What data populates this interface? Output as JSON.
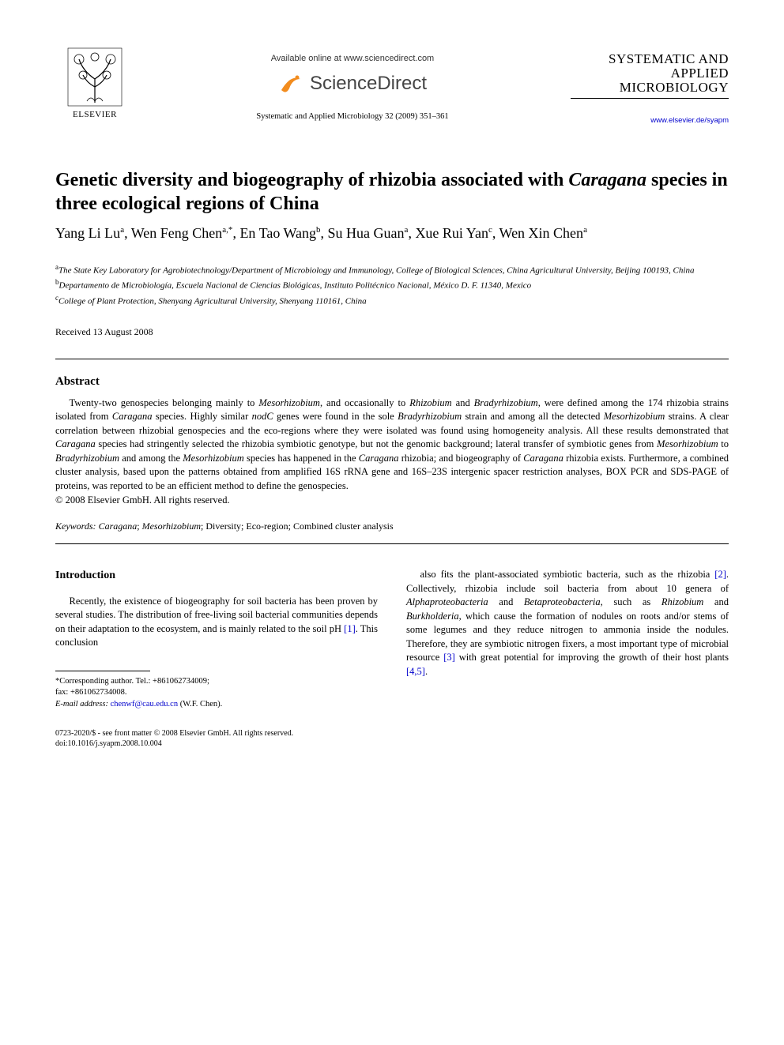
{
  "header": {
    "available_online": "Available online at www.sciencedirect.com",
    "sciencedirect": "ScienceDirect",
    "citation": "Systematic and Applied Microbiology 32 (2009) 351–361",
    "publisher": "ELSEVIER",
    "journal_name_line1": "SYSTEMATIC AND",
    "journal_name_line2": "APPLIED MICROBIOLOGY",
    "journal_url": "www.elsevier.de/syapm"
  },
  "title": {
    "html": "Genetic diversity and biogeography of rhizobia associated with <em>Caragana</em> species in three ecological regions of China"
  },
  "authors": {
    "html": "Yang Li Lu<sup>a</sup>, Wen Feng Chen<sup>a,*</sup>, En Tao Wang<sup>b</sup>, Su Hua Guan<sup>a</sup>, Xue Rui Yan<sup>c</sup>, Wen Xin Chen<sup>a</sup>"
  },
  "affiliations": [
    {
      "sup": "a",
      "text": "The State Key Laboratory for Agrobiotechnology/Department of Microbiology and Immunology, College of Biological Sciences, China Agricultural University, Beijing 100193, China"
    },
    {
      "sup": "b",
      "text": "Departamento de Microbiología, Escuela Nacional de Ciencias Biológicas, Instituto Politécnico Nacional, México D. F. 11340, Mexico"
    },
    {
      "sup": "c",
      "text": "College of Plant Protection, Shenyang Agricultural University, Shenyang 110161, China"
    }
  ],
  "received": "Received 13 August 2008",
  "abstract": {
    "heading": "Abstract",
    "body_html": "Twenty-two genospecies belonging mainly to <em>Mesorhizobium</em>, and occasionally to <em>Rhizobium</em> and <em>Bradyrhizobium</em>, were defined among the 174 rhizobia strains isolated from <em>Caragana</em> species. Highly similar <em>nodC</em> genes were found in the sole <em>Bradyrhizobium</em> strain and among all the detected <em>Mesorhizobium</em> strains. A clear correlation between rhizobial genospecies and the eco-regions where they were isolated was found using homogeneity analysis. All these results demonstrated that <em>Caragana</em> species had stringently selected the rhizobia symbiotic genotype, but not the genomic background; lateral transfer of symbiotic genes from <em>Mesorhizobium</em> to <em>Bradyrhizobium</em> and among the <em>Mesorhizobium</em> species has happened in the <em>Caragana</em> rhizobia; and biogeography of <em>Caragana</em> rhizobia exists. Furthermore, a combined cluster analysis, based upon the patterns obtained from amplified 16S rRNA gene and 16S–23S intergenic spacer restriction analyses, BOX PCR and SDS-PAGE of proteins, was reported to be an efficient method to define the genospecies.",
    "copyright": "© 2008 Elsevier GmbH. All rights reserved."
  },
  "keywords": {
    "label": "Keywords:",
    "list_html": "<em>Caragana</em>; <em>Mesorhizobium</em>; Diversity; Eco-region; Combined cluster analysis"
  },
  "introduction": {
    "heading": "Introduction",
    "col1_html": "Recently, the existence of biogeography for soil bacteria has been proven by several studies. The distribution of free-living soil bacterial communities depends on their adaptation to the ecosystem, and is mainly related to the soil pH <span class=\"ref-link\">[1]</span>. This conclusion",
    "col2_html": "also fits the plant-associated symbiotic bacteria, such as the rhizobia <span class=\"ref-link\">[2]</span>. Collectively, rhizobia include soil bacteria from about 10 genera of <em>Alphaproteobacteria</em> and <em>Betaproteobacteria</em>, such as <em>Rhizobium</em> and <em>Burkholderia</em>, which cause the formation of nodules on roots and/or stems of some legumes and they reduce nitrogen to ammonia inside the nodules. Therefore, they are symbiotic nitrogen fixers, a most important type of microbial resource <span class=\"ref-link\">[3]</span> with great potential for improving the growth of their host plants <span class=\"ref-link\">[4,5]</span>."
  },
  "footnotes": {
    "corresponding": "*Corresponding author. Tel.: +861062734009;",
    "fax": "fax: +861062734008.",
    "email_label": "E-mail address:",
    "email": "chenwf@cau.edu.cn",
    "email_attrib": "(W.F. Chen)."
  },
  "bottom": {
    "front_matter": "0723-2020/$ - see front matter © 2008 Elsevier GmbH. All rights reserved.",
    "doi": "doi:10.1016/j.syapm.2008.10.004"
  },
  "colors": {
    "link": "#0000cc",
    "text": "#000000",
    "bg": "#ffffff",
    "swoosh": "#f28c1e"
  }
}
